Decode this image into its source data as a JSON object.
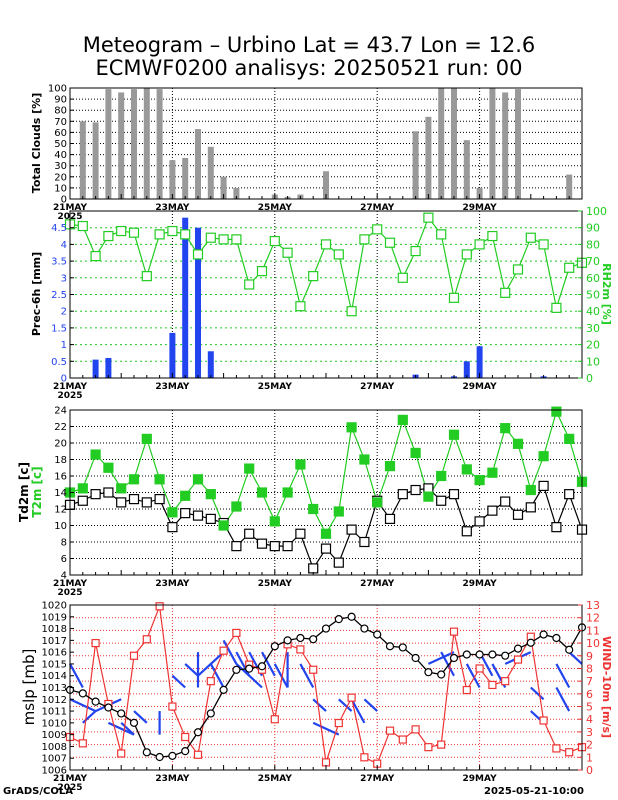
{
  "title": {
    "line1": "Meteogram – Urbino Lat = 43.7 Lon = 12.6",
    "line2": "ECMWF0200 analisys: 20250521 run: 00"
  },
  "footer": {
    "left": "GrADS/COLA",
    "right": "2025-05-21-10:00"
  },
  "colors": {
    "green": "#22cc22",
    "blue": "#2244ee",
    "red": "#ee3333",
    "gray": "#999999",
    "black": "#000000"
  },
  "x_axis": {
    "range": [
      0,
      40
    ],
    "ticks": [
      {
        "x": 0,
        "label": "21MAY",
        "year": "2025"
      },
      {
        "x": 8,
        "label": "23MAY",
        "year": ""
      },
      {
        "x": 16,
        "label": "25MAY",
        "year": ""
      },
      {
        "x": 24,
        "label": "27MAY",
        "year": ""
      },
      {
        "x": 32,
        "label": "29MAY",
        "year": ""
      }
    ],
    "note": "x in 6-hour steps from 2025-05-21 00Z"
  },
  "chart_data": [
    {
      "type": "bar",
      "ylabel": "Total Clouds [%]",
      "ylim": [
        0,
        100
      ],
      "yticks": [
        0,
        10,
        20,
        30,
        40,
        50,
        60,
        70,
        80,
        90,
        100
      ],
      "x": [
        1,
        2,
        3,
        4,
        5,
        6,
        7,
        8,
        9,
        10,
        11,
        12,
        13,
        14,
        16,
        17,
        18,
        20,
        27,
        28,
        29,
        30,
        31,
        32,
        33,
        34,
        35,
        36,
        37,
        38,
        39,
        40
      ],
      "values": [
        70,
        69,
        99,
        96,
        99,
        100,
        99,
        35,
        37,
        63,
        47,
        20,
        10,
        0,
        4,
        2,
        4,
        25,
        61,
        74,
        100,
        100,
        53,
        10,
        100,
        96,
        99,
        0,
        0,
        0,
        22,
        0
      ],
      "color": "#999999",
      "grid": "dotted"
    },
    {
      "type": "bar+line",
      "ylabel": "Prec-6h [mm]",
      "y2label": "RH2m [%]",
      "ylim": [
        0,
        5
      ],
      "y2lim": [
        0,
        100
      ],
      "yticks": [
        0,
        0.5,
        1,
        1.5,
        2,
        2.5,
        3,
        3.5,
        4,
        4.5
      ],
      "y2ticks": [
        0,
        10,
        20,
        30,
        40,
        50,
        60,
        70,
        80,
        90,
        100
      ],
      "series": [
        {
          "kind": "bar",
          "color": "#2244ee",
          "x": [
            2,
            3,
            8,
            9,
            10,
            11,
            27,
            30,
            31,
            32,
            37
          ],
          "values": [
            0.55,
            0.6,
            1.35,
            4.8,
            4.5,
            0.8,
            0.1,
            0.05,
            0.5,
            0.95,
            0.05
          ]
        },
        {
          "kind": "line",
          "color": "#22cc22",
          "marker": "open-square",
          "x": [
            0,
            1,
            2,
            3,
            4,
            5,
            6,
            7,
            8,
            9,
            10,
            11,
            12,
            13,
            14,
            15,
            16,
            17,
            18,
            19,
            20,
            21,
            22,
            23,
            24,
            25,
            26,
            27,
            28,
            29,
            30,
            31,
            32,
            33,
            34,
            35,
            36,
            37,
            38,
            39,
            40
          ],
          "values": [
            92,
            91,
            73,
            85,
            88,
            87,
            61,
            86,
            88,
            86,
            74,
            84,
            83,
            83,
            56,
            64,
            82,
            75,
            43,
            61,
            80,
            74,
            40,
            83,
            89,
            81,
            60,
            76,
            96,
            86,
            48,
            74,
            80,
            85,
            51,
            65,
            84,
            80,
            42,
            66,
            69
          ]
        }
      ],
      "grid": "dotted"
    },
    {
      "type": "line",
      "ylabel": "Td2m [c]",
      "ylabel2": "T2m [c]",
      "ylim": [
        4,
        24
      ],
      "yticks": [
        4,
        6,
        8,
        10,
        12,
        14,
        16,
        18,
        20,
        22,
        24
      ],
      "series": [
        {
          "name": "Td2m",
          "color": "#000000",
          "marker": "open-square",
          "x": [
            0,
            1,
            2,
            3,
            4,
            5,
            6,
            7,
            8,
            9,
            10,
            11,
            12,
            13,
            14,
            15,
            16,
            17,
            18,
            19,
            20,
            21,
            22,
            23,
            24,
            25,
            26,
            27,
            28,
            29,
            30,
            31,
            32,
            33,
            34,
            35,
            36,
            37,
            38,
            39,
            40
          ],
          "values": [
            12.5,
            13.0,
            13.8,
            14.0,
            12.8,
            13.2,
            12.8,
            13.2,
            9.8,
            11.5,
            11.2,
            10.8,
            10.3,
            7.5,
            9.0,
            7.8,
            7.5,
            7.5,
            9.0,
            4.8,
            7.2,
            5.5,
            9.5,
            8.0,
            13.0,
            10.8,
            13.8,
            14.3,
            14.5,
            13.0,
            13.8,
            9.3,
            10.5,
            11.8,
            12.9,
            11.3,
            12.2,
            14.8,
            9.8,
            13.8,
            9.5
          ]
        },
        {
          "name": "T2m",
          "color": "#22cc22",
          "marker": "filled-square",
          "x": [
            0,
            1,
            2,
            3,
            4,
            5,
            6,
            7,
            8,
            9,
            10,
            11,
            12,
            13,
            14,
            15,
            16,
            17,
            18,
            19,
            20,
            21,
            22,
            23,
            24,
            25,
            26,
            27,
            28,
            29,
            30,
            31,
            32,
            33,
            34,
            35,
            36,
            37,
            38,
            39,
            40
          ],
          "values": [
            14.0,
            14.5,
            18.6,
            17.0,
            14.5,
            15.6,
            20.5,
            15.6,
            11.6,
            13.6,
            15.6,
            13.8,
            10.0,
            12.3,
            16.9,
            14.0,
            10.5,
            14.0,
            17.4,
            12.0,
            9.0,
            11.7,
            21.9,
            18.0,
            12.8,
            17.2,
            22.8,
            18.8,
            13.5,
            16.0,
            21.0,
            16.8,
            15.5,
            16.4,
            21.8,
            19.9,
            14.3,
            18.4,
            23.8,
            20.5,
            15.3
          ]
        }
      ],
      "grid": "dotted"
    },
    {
      "type": "line",
      "ylabel": "mslp [mb]",
      "y2label": "WIND-10m [m/s]",
      "ylim": [
        1006,
        1020
      ],
      "yticks": [
        1006,
        1007,
        1008,
        1009,
        1010,
        1011,
        1012,
        1013,
        1014,
        1015,
        1016,
        1017,
        1018,
        1019,
        1020
      ],
      "y2lim": [
        0,
        13
      ],
      "y2ticks": [
        0,
        1,
        2,
        3,
        4,
        5,
        6,
        7,
        8,
        9,
        10,
        11,
        12,
        13
      ],
      "series": [
        {
          "name": "mslp",
          "color": "#000000",
          "marker": "open-circle",
          "x": [
            0,
            1,
            2,
            3,
            4,
            5,
            6,
            7,
            8,
            9,
            10,
            11,
            12,
            13,
            14,
            15,
            16,
            17,
            18,
            19,
            20,
            21,
            22,
            23,
            24,
            25,
            26,
            27,
            28,
            29,
            30,
            31,
            32,
            33,
            34,
            35,
            36,
            37,
            38,
            39,
            40
          ],
          "values": [
            1012.8,
            1012.5,
            1011.8,
            1011.3,
            1010.8,
            1010.0,
            1007.5,
            1007.1,
            1007.2,
            1007.6,
            1009.2,
            1010.8,
            1012.8,
            1014.5,
            1014.6,
            1014.8,
            1016.5,
            1017.0,
            1017.2,
            1017.1,
            1018.0,
            1018.8,
            1019.0,
            1018.0,
            1017.5,
            1016.5,
            1016.4,
            1015.5,
            1014.3,
            1014.1,
            1015.5,
            1015.8,
            1015.8,
            1015.8,
            1015.7,
            1016.3,
            1016.8,
            1017.5,
            1017.2,
            1016.2,
            1018.1
          ]
        },
        {
          "name": "WIND-10m",
          "color": "#ee3333",
          "marker": "open-square",
          "axis": "y2",
          "x": [
            0,
            1,
            2,
            3,
            4,
            5,
            6,
            7,
            8,
            9,
            10,
            11,
            12,
            13,
            14,
            15,
            16,
            17,
            18,
            19,
            20,
            21,
            22,
            23,
            24,
            25,
            26,
            27,
            28,
            29,
            30,
            31,
            32,
            33,
            34,
            35,
            36,
            37,
            38,
            39,
            40
          ],
          "values": [
            2.6,
            2.1,
            10.0,
            5.2,
            1.3,
            9.0,
            10.3,
            12.9,
            5.0,
            2.6,
            1.2,
            7.0,
            9.4,
            10.8,
            8.3,
            7.9,
            4.0,
            9.9,
            9.5,
            7.9,
            0.6,
            3.7,
            5.7,
            1.0,
            0.5,
            3.1,
            2.4,
            3.2,
            1.8,
            2.0,
            10.9,
            6.3,
            8.0,
            6.7,
            7.0,
            8.7,
            10.5,
            3.9,
            1.7,
            1.4,
            1.8
          ]
        }
      ],
      "wind_barbs": {
        "color": "#2244ee",
        "segments": [
          [
            0,
            1015,
            1,
            1013
          ],
          [
            0,
            1012,
            2,
            1011
          ],
          [
            2,
            1011,
            1,
            1010
          ],
          [
            2,
            1011,
            4,
            1012
          ],
          [
            3,
            1010,
            5,
            1009
          ],
          [
            4,
            1010,
            5,
            1009
          ],
          [
            5,
            1011,
            6,
            1010
          ],
          [
            7,
            1011,
            7,
            1009
          ],
          [
            8,
            1014,
            9,
            1013
          ],
          [
            9,
            1015,
            10,
            1014
          ],
          [
            10,
            1016,
            10,
            1013
          ],
          [
            10,
            1014,
            12,
            1016
          ],
          [
            11,
            1015,
            12,
            1013
          ],
          [
            12,
            1017,
            13,
            1015
          ],
          [
            13,
            1016,
            14,
            1014
          ],
          [
            13,
            1015,
            15,
            1013
          ],
          [
            14,
            1016,
            15,
            1014
          ],
          [
            15,
            1016,
            16,
            1014
          ],
          [
            16,
            1015,
            17,
            1013
          ],
          [
            17,
            1016,
            17,
            1013
          ],
          [
            18,
            1015,
            19,
            1013
          ],
          [
            19,
            1012,
            20,
            1011
          ],
          [
            19,
            1010,
            21,
            1009
          ],
          [
            21,
            1012,
            22,
            1011
          ],
          [
            22,
            1012,
            23,
            1010
          ],
          [
            23,
            1012,
            24,
            1011
          ],
          [
            28,
            1015,
            30,
            1016
          ],
          [
            29,
            1016,
            30,
            1014
          ],
          [
            31,
            1015,
            32,
            1013
          ],
          [
            32,
            1016,
            33,
            1014
          ],
          [
            33,
            1015,
            34,
            1013
          ],
          [
            34,
            1015,
            36,
            1016
          ],
          [
            36,
            1013,
            37,
            1012
          ],
          [
            36,
            1011,
            37,
            1010
          ],
          [
            38,
            1015,
            39,
            1013
          ],
          [
            38,
            1013,
            39,
            1011
          ],
          [
            39,
            1016,
            40,
            1015
          ]
        ]
      },
      "grid": "dotted"
    }
  ]
}
